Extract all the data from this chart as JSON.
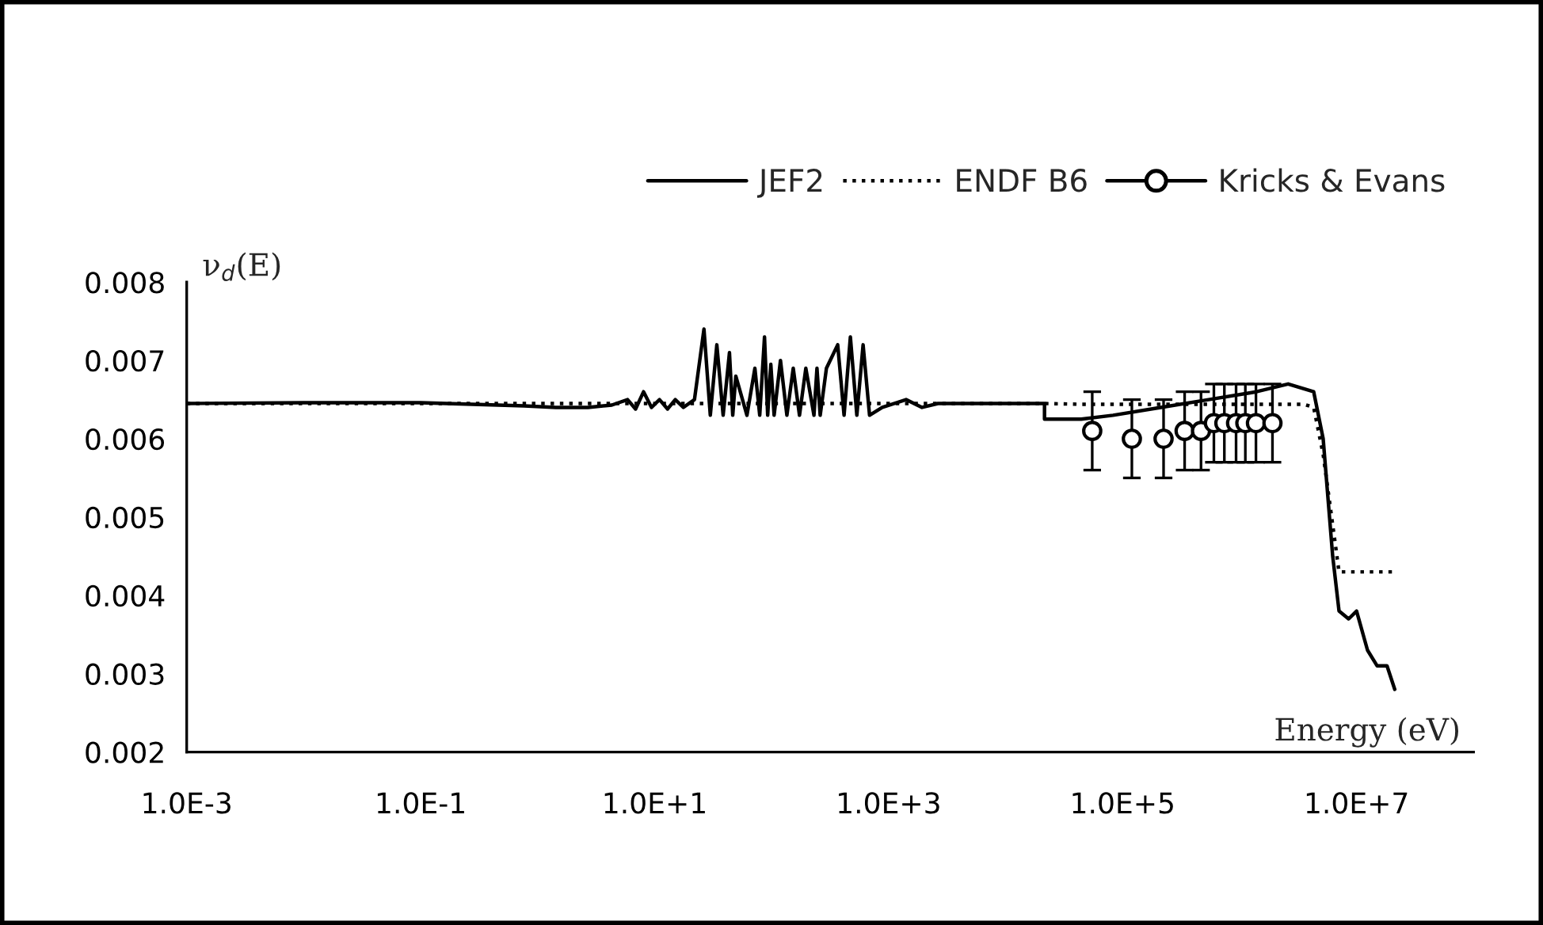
{
  "chart_data": {
    "type": "line",
    "xlabel": "Energy (eV)",
    "ylabel": "ν$_{d}$(E)",
    "log": "x",
    "xlim": [
      0.001,
      100000000
    ],
    "xticks": [
      {
        "value": 0.001,
        "label": "1.0E-3"
      },
      {
        "value": 0.1,
        "label": "1.0E-1"
      },
      {
        "value": 10,
        "label": "1.0E+1"
      },
      {
        "value": 1000,
        "label": "1.0E+3"
      },
      {
        "value": 100000,
        "label": "1.0E+5"
      },
      {
        "value": 10000000,
        "label": "1.0E+7"
      }
    ],
    "ylim": [
      0.002,
      0.008
    ],
    "yticks": [
      0.002,
      0.003,
      0.004,
      0.005,
      0.006,
      0.007,
      0.008
    ],
    "grid": false,
    "legend": "top right",
    "series": [
      {
        "name": "JEF2",
        "color": "#000000",
        "line_style": "solid",
        "marker": "none",
        "x": [
          0.001,
          0.01,
          0.1,
          0.766,
          1.43,
          2.69,
          4.3,
          5.87,
          6.87,
          8.04,
          9.4,
          11.0,
          12.9,
          15.0,
          17.6,
          21.9,
          26.4,
          29.9,
          34.0,
          38.5,
          43.6,
          46.5,
          49.4,
          61.5,
          71.9,
          79.1,
          86.9,
          92.5,
          98.4,
          105,
          119,
          135,
          153,
          173,
          196,
          230,
          244,
          260,
          294,
          367,
          416,
          471,
          535,
          605,
          687,
          883,
          1410,
          1930,
          2640,
          3610,
          21500,
          21500,
          44300,
          82800,
          212000,
          543000,
          1390000,
          2600000,
          4300000,
          5180000,
          6250000,
          7080000,
          8550000,
          10000000,
          12400000,
          15000000,
          18200000,
          21200000
        ],
        "values": [
          0.00645,
          0.00646,
          0.00646,
          0.00642,
          0.0064,
          0.0064,
          0.00643,
          0.0065,
          0.00638,
          0.0066,
          0.0064,
          0.0065,
          0.00638,
          0.0065,
          0.0064,
          0.0065,
          0.0074,
          0.0063,
          0.0072,
          0.0063,
          0.0071,
          0.0063,
          0.0068,
          0.0063,
          0.0069,
          0.0063,
          0.0073,
          0.0063,
          0.00695,
          0.0063,
          0.007,
          0.0063,
          0.0069,
          0.0063,
          0.0069,
          0.0063,
          0.0069,
          0.0063,
          0.0069,
          0.0072,
          0.0063,
          0.0073,
          0.0063,
          0.0072,
          0.0063,
          0.0064,
          0.0065,
          0.0064,
          0.00645,
          0.00645,
          0.00645,
          0.00625,
          0.00625,
          0.0063,
          0.0064,
          0.0065,
          0.0066,
          0.0067,
          0.0066,
          0.006,
          0.0045,
          0.0038,
          0.0037,
          0.0038,
          0.0033,
          0.0031,
          0.0031,
          0.0028
        ]
      },
      {
        "name": "ENDF B6",
        "color": "#000000",
        "line_style": "dotted",
        "marker": "none",
        "x": [
          0.001,
          21500,
          44300,
          3560000,
          4300000,
          5180000,
          6250000,
          7080000,
          21200000
        ],
        "values": [
          0.00645,
          0.00645,
          0.00644,
          0.00644,
          0.0064,
          0.0058,
          0.0049,
          0.0043,
          0.0043
        ]
      },
      {
        "name": "Kricks & Evans",
        "type": "scatter",
        "color": "#000000",
        "marker": "circle",
        "x": [
          55000,
          120000,
          224000,
          339000,
          468000,
          603000,
          741000,
          933000,
          1120000,
          1380000,
          1910000
        ],
        "values": [
          0.0061,
          0.006,
          0.006,
          0.0061,
          0.0061,
          0.0062,
          0.0062,
          0.0062,
          0.0062,
          0.0062,
          0.0062
        ],
        "errors": [
          0.0005,
          0.0005,
          0.0005,
          0.0005,
          0.0005,
          0.0005,
          0.0005,
          0.0005,
          0.0005,
          0.0005,
          0.0005
        ]
      }
    ]
  }
}
